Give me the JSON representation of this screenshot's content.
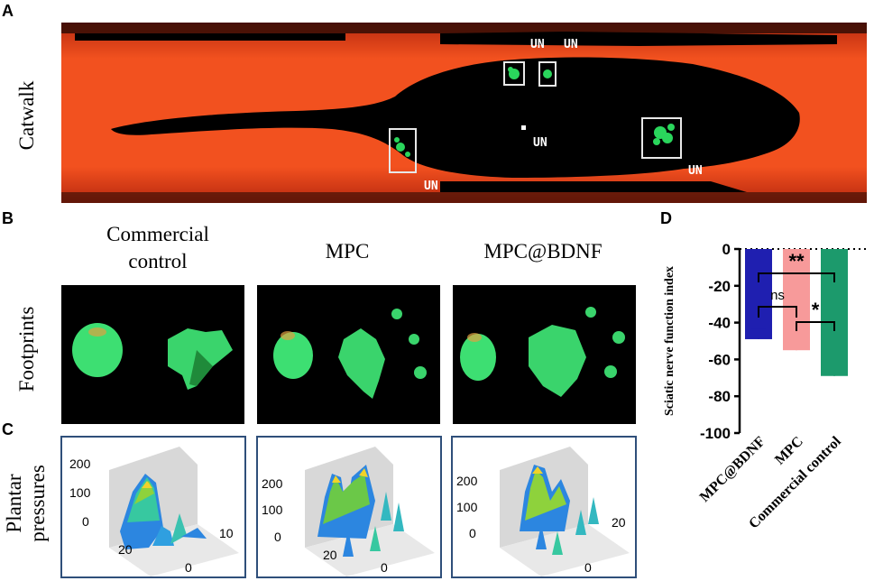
{
  "panels": {
    "a": {
      "letter": "A",
      "row_label": "Catwalk",
      "un": [
        "UN",
        "UN",
        "UN",
        "UN",
        "UN"
      ]
    },
    "b": {
      "letter": "B",
      "row_label": "Footprints",
      "columns": [
        {
          "line1": "Commercial",
          "line2": "control"
        },
        {
          "line1": "MPC",
          "line2": ""
        },
        {
          "line1": "MPC@BDNF",
          "line2": ""
        }
      ]
    },
    "c": {
      "letter": "C",
      "row_label_line1": "Plantar",
      "row_label_line2": "pressures",
      "plots": [
        {
          "z_ticks": [
            "200",
            "100",
            "0"
          ],
          "y_tick_left": "20",
          "y_tick_right": "10",
          "x_zero": "0"
        },
        {
          "z_ticks": [
            "200",
            "100",
            "0"
          ],
          "y_tick_left": "20",
          "y_tick_right": "",
          "x_zero": "0"
        },
        {
          "z_ticks": [
            "200",
            "100",
            "0"
          ],
          "y_tick_left": "",
          "y_tick_right": "20",
          "x_zero": "0"
        }
      ]
    },
    "d": {
      "letter": "D"
    }
  },
  "colors": {
    "bar_mpc_bdnf": "#1f1fb0",
    "bar_mpc": "#f79a9a",
    "bar_control": "#1c9a6c",
    "catwalk_bg": "#f04a1e",
    "footprint_green": "#3ee07a"
  },
  "chart_data": {
    "type": "bar",
    "ylabel": "Sciatic nerve function index",
    "ylim": [
      -100,
      0
    ],
    "yticks": [
      "0",
      "-20",
      "-40",
      "-60",
      "-80",
      "-100"
    ],
    "categories": [
      "MPC@BDNF",
      "MPC",
      "Commercial control"
    ],
    "values": [
      -49,
      -55,
      -69
    ],
    "errors": [
      5,
      5,
      6
    ],
    "reference_line": {
      "y": 0,
      "style": "dotted"
    },
    "significance": [
      {
        "from": "MPC@BDNF",
        "to": "Commercial control",
        "label": "**"
      },
      {
        "from": "MPC@BDNF",
        "to": "MPC",
        "label": "ns"
      },
      {
        "from": "MPC",
        "to": "Commercial control",
        "label": "*"
      }
    ]
  }
}
